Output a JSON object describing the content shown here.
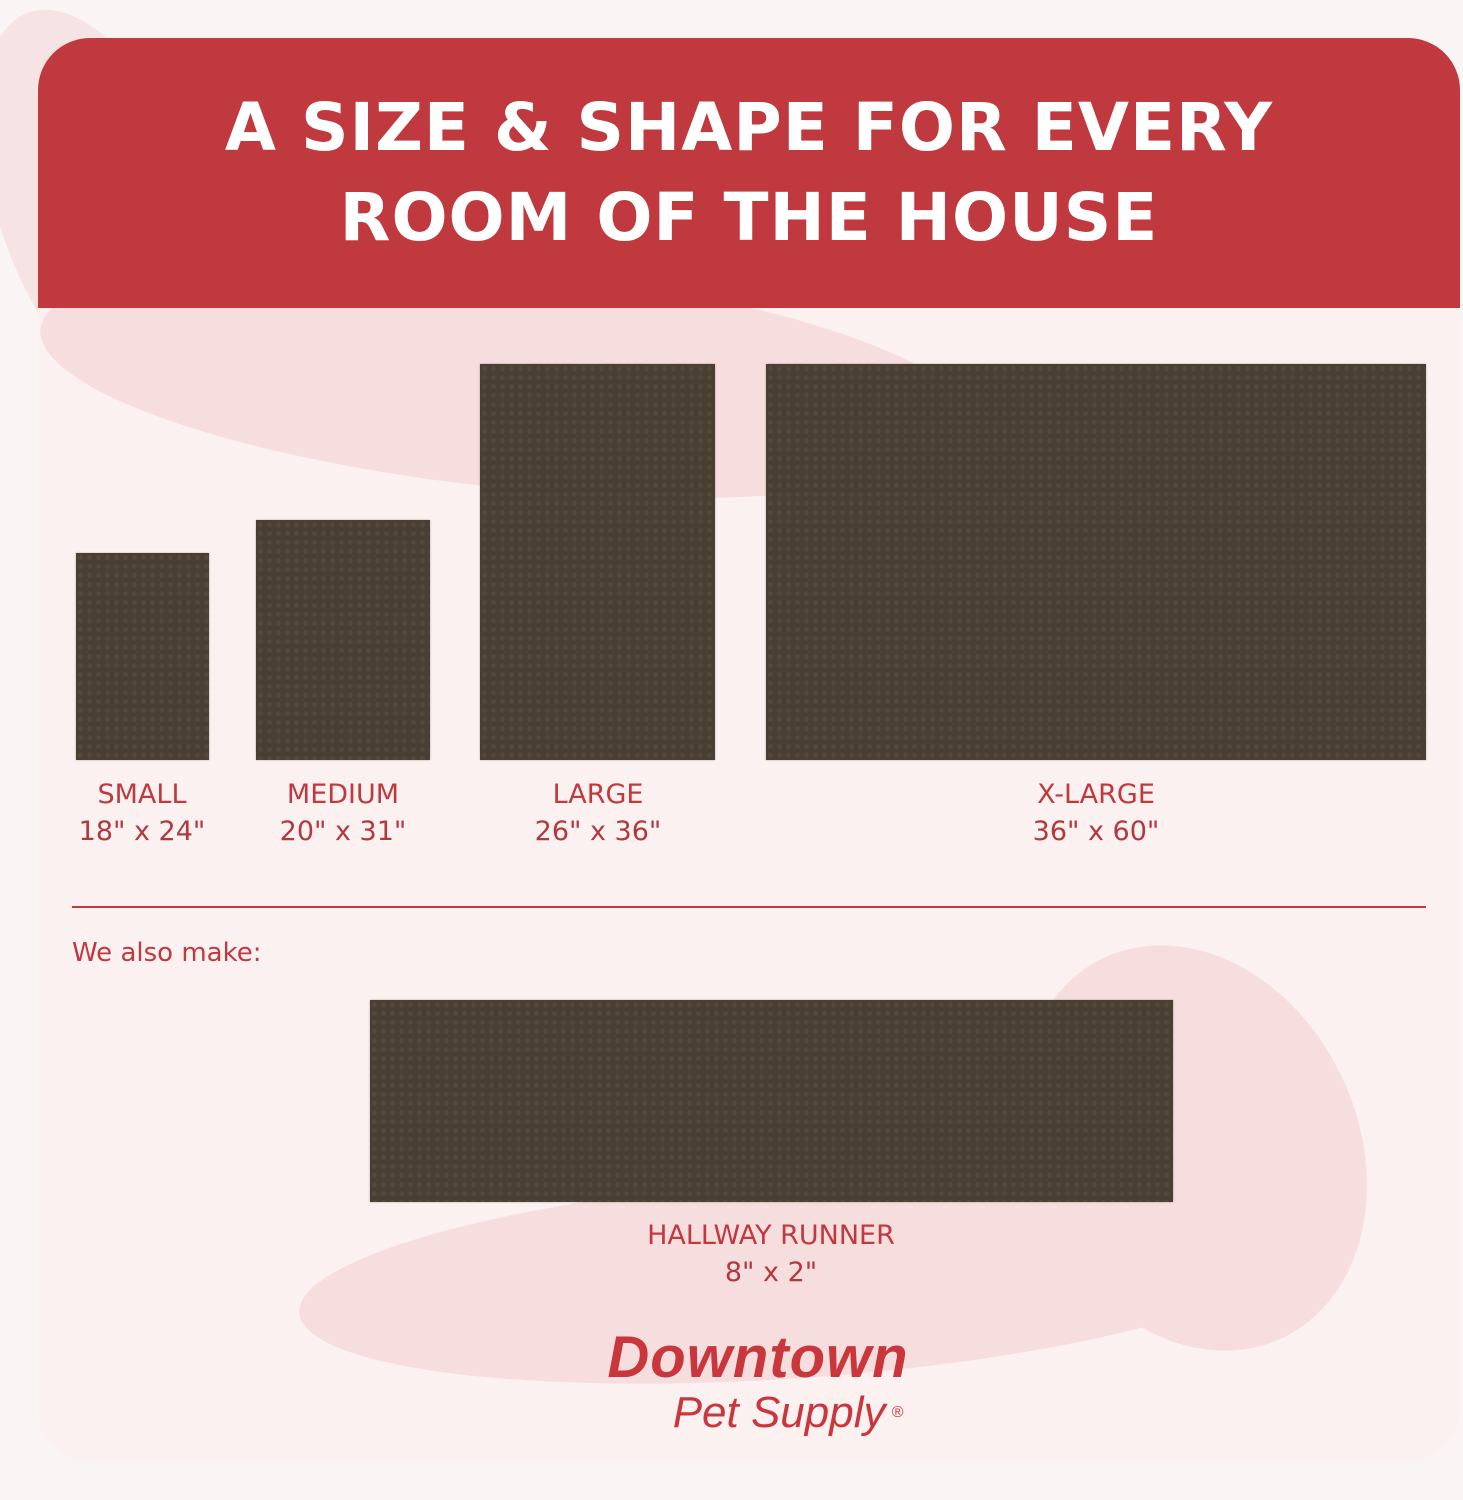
{
  "header": {
    "title": "A SIZE & SHAPE FOR EVERY ROOM OF THE HOUSE"
  },
  "sizes": [
    {
      "name": "SMALL",
      "dims": "18\" x 24\""
    },
    {
      "name": "MEDIUM",
      "dims": "20\" x 31\""
    },
    {
      "name": "LARGE",
      "dims": "26\" x 36\""
    },
    {
      "name": "X-LARGE",
      "dims": "36\" x 60\""
    }
  ],
  "also": {
    "label": "We also make:",
    "name": "HALLWAY RUNNER",
    "dims": "8\" x 2\""
  },
  "logo": {
    "line1": "Downtown",
    "line2": "Pet Supply",
    "mark": "®"
  },
  "colors": {
    "accent": "#c0393e",
    "mat": "#4a3f33",
    "background": "#fcf1f1"
  }
}
